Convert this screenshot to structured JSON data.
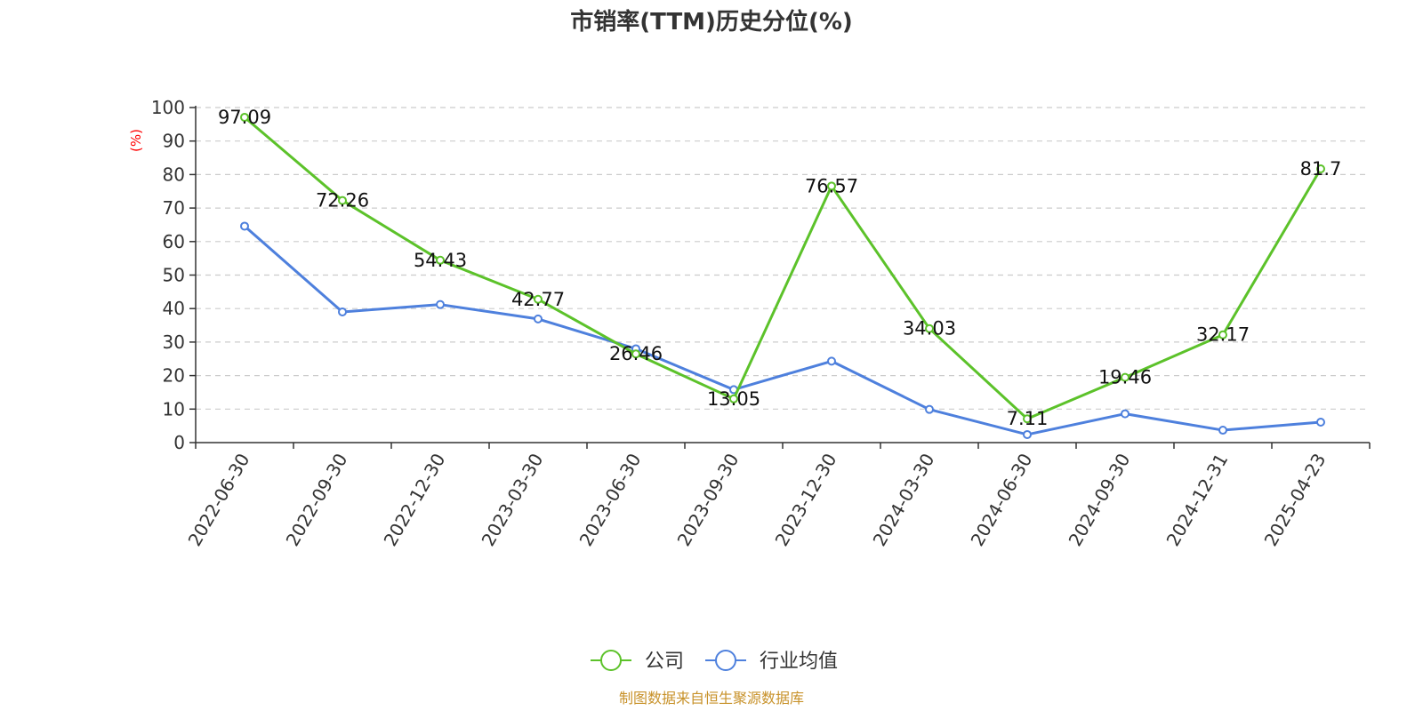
{
  "chart_data": {
    "type": "line",
    "title": "市销率(TTM)历史分位(%)",
    "ylabel": "(%)",
    "xlabel": "",
    "categories": [
      "2022-06-30",
      "2022-09-30",
      "2022-12-30",
      "2023-03-30",
      "2023-06-30",
      "2023-09-30",
      "2023-12-30",
      "2024-03-30",
      "2024-06-30",
      "2024-09-30",
      "2024-12-31",
      "2025-04-23"
    ],
    "ylim": [
      0,
      100
    ],
    "yticks": [
      "0",
      "10",
      "20",
      "30",
      "40",
      "50",
      "60",
      "70",
      "80",
      "90",
      "100"
    ],
    "grid": true,
    "legend_position": "bottom-center",
    "series": [
      {
        "name": "公司",
        "color": "#5cc22a",
        "values": [
          97.09,
          72.26,
          54.43,
          42.77,
          26.46,
          13.05,
          76.57,
          34.03,
          7.11,
          19.46,
          32.17,
          81.7
        ],
        "labels": [
          "97.09",
          "72.26",
          "54.43",
          "42.77",
          "26.46",
          "13.05",
          "76.57",
          "34.03",
          "7.11",
          "19.46",
          "32.17",
          "81.7"
        ]
      },
      {
        "name": "行业均值",
        "color": "#4e80dd",
        "values": [
          64.6,
          39.0,
          41.2,
          36.9,
          28.0,
          15.8,
          24.3,
          9.9,
          2.4,
          8.6,
          3.7,
          6.1
        ]
      }
    ]
  },
  "source": "制图数据来自恒生聚源数据库",
  "colors": {
    "ylabel": "#ff0000",
    "source": "#c8922a",
    "axis": "#333333",
    "grid": "#cccccc"
  }
}
